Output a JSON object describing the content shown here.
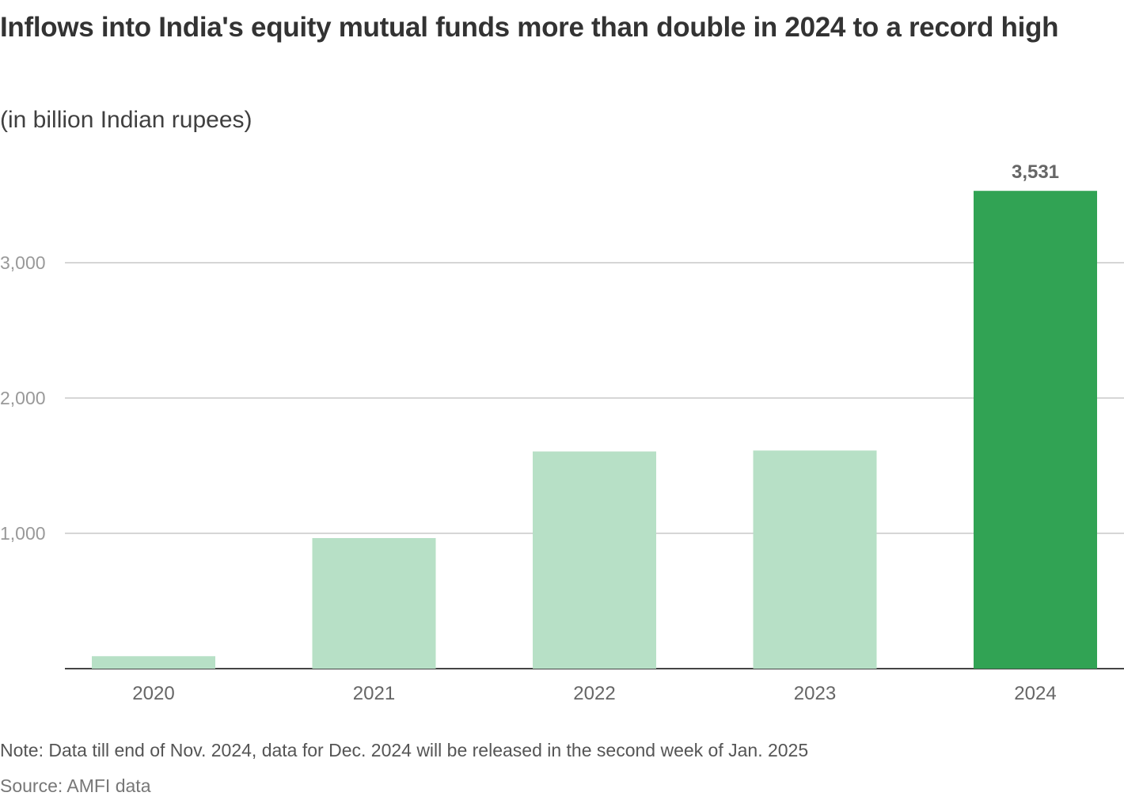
{
  "header": {
    "title": "Inflows into India's equity mutual funds more than double in 2024 to a record high",
    "subtitle": "(in billion Indian rupees)"
  },
  "footer": {
    "note": "Note: Data till end of Nov. 2024, data for Dec. 2024 will be released in the second week of Jan. 2025",
    "source": "Source: AMFI data"
  },
  "colors": {
    "highlight_bar": "#31a354",
    "regular_bar": "#b7e0c6"
  },
  "chart_data": {
    "type": "bar",
    "title": "Inflows into India's equity mutual funds more than double in 2024 to a record high",
    "subtitle": "(in billion Indian rupees)",
    "categories": [
      "2020",
      "2021",
      "2022",
      "2023",
      "2024"
    ],
    "values": [
      92,
      965,
      1605,
      1612,
      3531
    ],
    "highlight_index": 4,
    "data_labels": [
      {
        "index": 4,
        "text": "3,531"
      }
    ],
    "xlabel": "",
    "ylabel": "",
    "ylim": [
      0,
      3600
    ],
    "yticks": [
      {
        "value": 1000,
        "label": "1,000"
      },
      {
        "value": 2000,
        "label": "2,000"
      },
      {
        "value": 3000,
        "label": "3,000"
      }
    ],
    "grid": true,
    "legend": "none"
  }
}
